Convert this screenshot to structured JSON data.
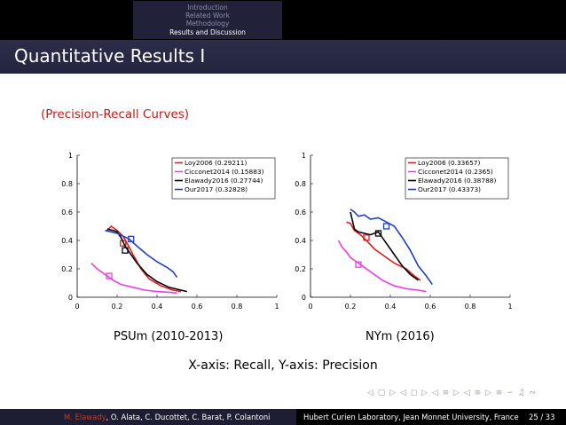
{
  "nav": {
    "sections": [
      "Introduction",
      "Related Work",
      "Methodology",
      "Results and Discussion"
    ],
    "active_index": 3
  },
  "slide": {
    "title": "Quantitative Results I",
    "subtitle": "(Precision-Recall Curves)",
    "caption": "X-axis: Recall, Y-axis: Precision"
  },
  "colors": {
    "Loy2006": "#e41a1c",
    "Cicconet2014": "#e83ee8",
    "Elawady2016": "#000000",
    "Our2017": "#1f3fbf",
    "subtitle": "#b8201b",
    "author_highlight": "#c0392b"
  },
  "chart_data": [
    {
      "type": "line",
      "label": "PSUm (2010-2013)",
      "xlabel": "Recall",
      "ylabel": "Precision",
      "xlim": [
        0,
        1
      ],
      "ylim": [
        0,
        1
      ],
      "xticks": [
        "0",
        "0.2",
        "0.4",
        "0.6",
        "0.8",
        "1"
      ],
      "yticks": [
        "0",
        "0.2",
        "0.4",
        "0.6",
        "0.8",
        "1"
      ],
      "legend_position": "top-right",
      "series": [
        {
          "name": "Loy2006 (0.29211)",
          "key": "Loy2006",
          "x": [
            0.15,
            0.17,
            0.2,
            0.23,
            0.25,
            0.28,
            0.32,
            0.36,
            0.42,
            0.48,
            0.52
          ],
          "y": [
            0.47,
            0.5,
            0.47,
            0.43,
            0.38,
            0.3,
            0.2,
            0.13,
            0.08,
            0.05,
            0.04
          ],
          "marker": {
            "x": 0.23,
            "y": 0.38
          }
        },
        {
          "name": "Cicconet2014 (0.15883)",
          "key": "Cicconet2014",
          "x": [
            0.07,
            0.1,
            0.12,
            0.15,
            0.18,
            0.22,
            0.28,
            0.34,
            0.4,
            0.46,
            0.5
          ],
          "y": [
            0.24,
            0.2,
            0.18,
            0.15,
            0.12,
            0.09,
            0.07,
            0.05,
            0.04,
            0.035,
            0.03
          ],
          "marker": {
            "x": 0.16,
            "y": 0.15
          }
        },
        {
          "name": "Elawady2016 (0.27744)",
          "key": "Elawady2016",
          "x": [
            0.15,
            0.18,
            0.2,
            0.22,
            0.24,
            0.26,
            0.3,
            0.35,
            0.4,
            0.46,
            0.52,
            0.55
          ],
          "y": [
            0.48,
            0.47,
            0.46,
            0.42,
            0.36,
            0.32,
            0.24,
            0.16,
            0.11,
            0.07,
            0.05,
            0.04
          ],
          "marker": {
            "x": 0.24,
            "y": 0.33
          }
        },
        {
          "name": "Our2017 (0.32828)",
          "key": "Our2017",
          "x": [
            0.14,
            0.17,
            0.2,
            0.23,
            0.26,
            0.3,
            0.35,
            0.4,
            0.45,
            0.48,
            0.5
          ],
          "y": [
            0.47,
            0.46,
            0.45,
            0.43,
            0.41,
            0.36,
            0.3,
            0.25,
            0.21,
            0.18,
            0.14
          ],
          "marker": {
            "x": 0.27,
            "y": 0.41
          }
        }
      ]
    },
    {
      "type": "line",
      "label": "NYm (2016)",
      "xlabel": "Recall",
      "ylabel": "Precision",
      "xlim": [
        0,
        1
      ],
      "ylim": [
        0,
        1
      ],
      "xticks": [
        "0",
        "0.2",
        "0.4",
        "0.6",
        "0.8",
        "1"
      ],
      "yticks": [
        "0",
        "0.2",
        "0.4",
        "0.6",
        "0.8",
        "1"
      ],
      "legend_position": "top-right",
      "series": [
        {
          "name": "Loy2006 (0.33657)",
          "key": "Loy2006",
          "x": [
            0.18,
            0.2,
            0.22,
            0.25,
            0.28,
            0.32,
            0.36,
            0.42,
            0.48,
            0.52,
            0.55
          ],
          "y": [
            0.53,
            0.52,
            0.47,
            0.44,
            0.4,
            0.34,
            0.3,
            0.24,
            0.2,
            0.15,
            0.12
          ],
          "marker": {
            "x": 0.28,
            "y": 0.42
          }
        },
        {
          "name": "Cicconet2014 (0.2365)",
          "key": "Cicconet2014",
          "x": [
            0.14,
            0.16,
            0.18,
            0.2,
            0.23,
            0.26,
            0.3,
            0.36,
            0.42,
            0.48,
            0.54,
            0.58
          ],
          "y": [
            0.4,
            0.35,
            0.32,
            0.28,
            0.25,
            0.22,
            0.18,
            0.12,
            0.08,
            0.06,
            0.05,
            0.04
          ],
          "marker": {
            "x": 0.24,
            "y": 0.23
          }
        },
        {
          "name": "Elawady2016 (0.38788)",
          "key": "Elawady2016",
          "x": [
            0.2,
            0.22,
            0.24,
            0.27,
            0.3,
            0.34,
            0.38,
            0.42,
            0.46,
            0.5,
            0.54
          ],
          "y": [
            0.6,
            0.48,
            0.46,
            0.45,
            0.44,
            0.46,
            0.38,
            0.3,
            0.22,
            0.16,
            0.12
          ],
          "marker": {
            "x": 0.34,
            "y": 0.45
          }
        },
        {
          "name": "Our2017 (0.43373)",
          "key": "Our2017",
          "x": [
            0.2,
            0.22,
            0.24,
            0.27,
            0.3,
            0.34,
            0.38,
            0.42,
            0.46,
            0.5,
            0.54,
            0.58,
            0.61
          ],
          "y": [
            0.62,
            0.6,
            0.57,
            0.58,
            0.55,
            0.56,
            0.53,
            0.5,
            0.42,
            0.33,
            0.22,
            0.15,
            0.09
          ],
          "marker": {
            "x": 0.38,
            "y": 0.5
          }
        }
      ]
    }
  ],
  "nav_symbols": "◁ ▢ ▷ ◁ ◻ ▷ ◁ ≡ ▷ ◁ ≡ ▷ ≡ ∽ ♫ ∾",
  "footer": {
    "author_highlight": "M. Elawady",
    "authors_rest": ", O. Alata, C. Ducottet, C. Barat, P. Colantoni",
    "institution": "Hubert Curien Laboratory, Jean Monnet University, France",
    "page": "25 / 33"
  }
}
